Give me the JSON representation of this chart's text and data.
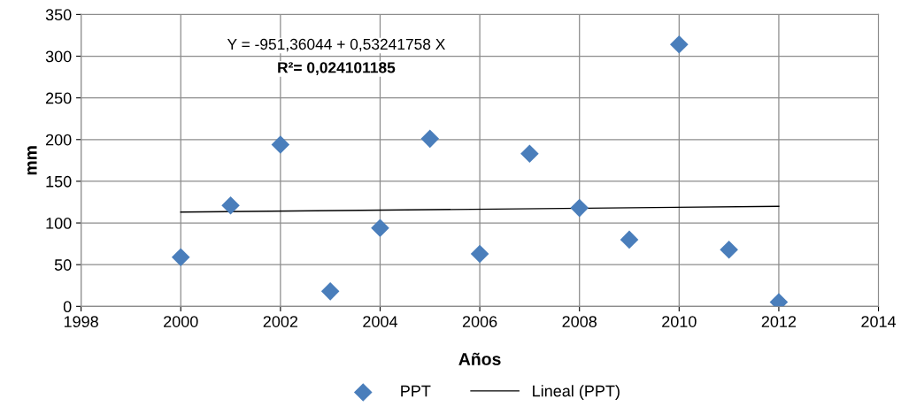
{
  "chart_data": {
    "type": "scatter",
    "xlabel": "Años",
    "ylabel": "mm",
    "xlim": [
      1998,
      2014
    ],
    "xticks": [
      1998,
      2000,
      2002,
      2004,
      2006,
      2008,
      2010,
      2012,
      2014
    ],
    "ylim": [
      0,
      350
    ],
    "yticks": [
      0,
      50,
      100,
      150,
      200,
      250,
      300,
      350
    ],
    "grid": true,
    "legend": "bottom",
    "annotations": [
      "Y = -951,36044 + 0,53241758 X",
      "R²= 0,024101185"
    ],
    "series": [
      {
        "name": "PPT",
        "color": "#4a7ebb",
        "marker": "diamond",
        "x": [
          2000,
          2001,
          2002,
          2003,
          2004,
          2005,
          2006,
          2007,
          2008,
          2009,
          2010,
          2011,
          2012
        ],
        "values": [
          59,
          121,
          194,
          18,
          94,
          201,
          63,
          183,
          118,
          80,
          314,
          68,
          5
        ]
      },
      {
        "name": "Lineal (PPT)",
        "type": "line",
        "marker": "none",
        "color": "#000000",
        "x": [
          2000,
          2012
        ],
        "values": [
          113,
          120
        ]
      }
    ]
  }
}
